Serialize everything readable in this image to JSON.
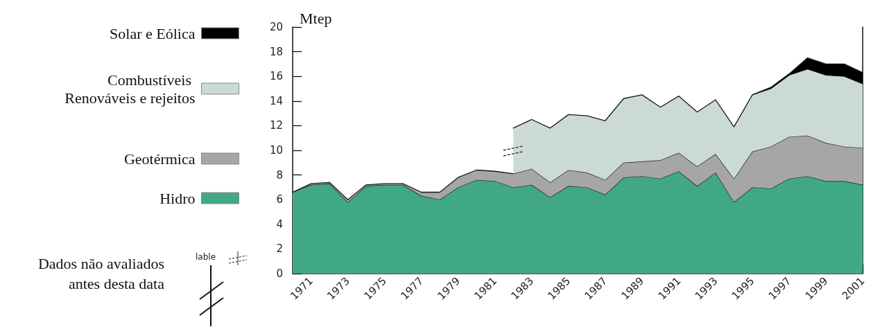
{
  "chart_data": {
    "type": "area",
    "ylabel": "Mtep",
    "stacked": true,
    "legend": "left",
    "x": [
      1970,
      1971,
      1972,
      1973,
      1974,
      1975,
      1976,
      1977,
      1978,
      1979,
      1980,
      1981,
      1982,
      1983,
      1984,
      1985,
      1986,
      1987,
      1988,
      1989,
      1990,
      1991,
      1992,
      1993,
      1994,
      1995,
      1996,
      1997,
      1998,
      1999,
      2000,
      2001
    ],
    "series": [
      {
        "name": "Hidro",
        "color": "#41a887",
        "values": [
          6.6,
          7.2,
          7.3,
          5.8,
          7.1,
          7.2,
          7.2,
          6.3,
          6.0,
          7.0,
          7.6,
          7.5,
          7.0,
          7.2,
          6.2,
          7.1,
          7.0,
          6.4,
          7.8,
          7.9,
          7.7,
          8.3,
          7.1,
          8.2,
          5.8,
          7.0,
          6.9,
          7.7,
          7.9,
          7.5,
          7.5,
          7.2
        ]
      },
      {
        "name": "Geotérmica",
        "color": "#a6a6a6",
        "values": [
          0,
          0.1,
          0.1,
          0.2,
          0.1,
          0.1,
          0.1,
          0.3,
          0.6,
          0.8,
          0.8,
          0.8,
          1.1,
          1.3,
          1.2,
          1.3,
          1.2,
          1.2,
          1.2,
          1.2,
          1.5,
          1.5,
          1.6,
          1.5,
          1.9,
          2.9,
          3.4,
          3.4,
          3.3,
          3.1,
          2.8,
          3.0
        ]
      },
      {
        "name": "Combustíveis Renováveis e rejeitos",
        "color": "#cbdad6",
        "values": [
          null,
          null,
          null,
          null,
          null,
          null,
          null,
          null,
          null,
          null,
          null,
          null,
          3.7,
          4.0,
          4.4,
          4.5,
          4.6,
          4.8,
          5.2,
          5.4,
          4.3,
          4.6,
          4.4,
          4.4,
          4.2,
          4.6,
          4.7,
          5.0,
          5.4,
          5.5,
          5.7,
          5.2
        ]
      },
      {
        "name": "Solar e Eólica",
        "color": "#000000",
        "values": [
          null,
          null,
          null,
          null,
          null,
          null,
          null,
          null,
          null,
          null,
          null,
          null,
          null,
          null,
          null,
          null,
          null,
          null,
          null,
          null,
          null,
          null,
          null,
          null,
          null,
          0,
          0.1,
          0.1,
          0.9,
          0.9,
          1.0,
          0.9
        ]
      }
    ],
    "xlim": [
      1970,
      2001
    ],
    "xticks": [
      1971,
      1973,
      1975,
      1977,
      1979,
      1981,
      1983,
      1985,
      1987,
      1989,
      1991,
      1993,
      1995,
      1997,
      1999,
      2001
    ],
    "ylim": [
      0,
      20
    ],
    "yticks": [
      0,
      2,
      4,
      6,
      8,
      10,
      12,
      14,
      16,
      18,
      20
    ],
    "annotations": [
      "Dados não avaliados antes desta data",
      "lable"
    ]
  }
}
